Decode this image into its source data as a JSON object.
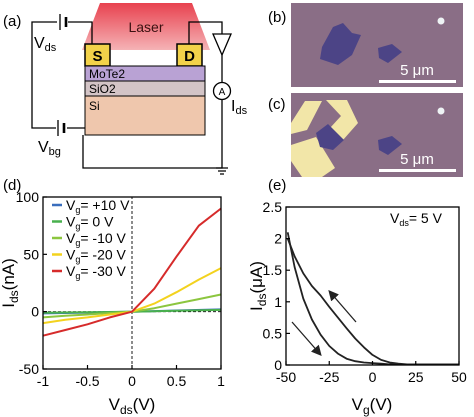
{
  "figure": {
    "panel_labels": {
      "a": "(a)",
      "b": "(b)",
      "c": "(c)",
      "d": "(d)",
      "e": "(e)"
    },
    "colors": {
      "laser": "#e8424f",
      "source_pad": "#f2d24a",
      "drain_pad": "#f2d24a",
      "mote2": "#b9a2d4",
      "sio2": "#d3c4c6",
      "si": "#efc7ad",
      "photo_bg": "#8a6e86",
      "flake": "#4c4486",
      "gold_contact": "#f2e6a8"
    },
    "schematic": {
      "laser_label": "Laser",
      "source_label": "S",
      "drain_label": "D",
      "layers": [
        "MoTe2",
        "SiO2",
        "Si"
      ],
      "vds_label": {
        "main": "V",
        "sub": "ds"
      },
      "vbg_label": {
        "main": "V",
        "sub": "bg"
      },
      "ammeter_symbol": "A",
      "ids_label": {
        "main": "I",
        "sub": "ds"
      }
    },
    "photo_b": {
      "scale_bar_text": "5 μm"
    },
    "photo_c": {
      "scale_bar_text": "5 μm"
    }
  },
  "chart_data": [
    {
      "panel": "(d)",
      "type": "line",
      "xlabel": {
        "main": "V",
        "sub": "ds",
        "unit": "(V)"
      },
      "ylabel": {
        "main": "I",
        "sub": "ds",
        "unit": "(nA)"
      },
      "xlim": [
        -1,
        1
      ],
      "ylim": [
        -50,
        100
      ],
      "xticks": [
        "-1",
        "-0.5",
        "0",
        "0.5",
        "1"
      ],
      "yticks": [
        "-50",
        "0",
        "50",
        "100"
      ],
      "legend_position": "top-left",
      "series": [
        {
          "name": "V_g= +10 V",
          "legend": {
            "main": "V",
            "sub": "g",
            "rest": "= +10 V"
          },
          "color": "#3a6ebd",
          "x": [
            -1,
            -0.5,
            0,
            0.5,
            1
          ],
          "y": [
            -1.5,
            -0.8,
            0,
            1,
            2
          ]
        },
        {
          "name": "V_g= 0 V",
          "legend": {
            "main": "V",
            "sub": "g",
            "rest": "= 0 V"
          },
          "color": "#49b04d",
          "x": [
            -1,
            -0.5,
            0,
            0.5,
            1
          ],
          "y": [
            -1,
            -0.5,
            0,
            0.8,
            1.5
          ]
        },
        {
          "name": "V_g= -10 V",
          "legend": {
            "main": "V",
            "sub": "g",
            "rest": "= -10 V"
          },
          "color": "#8cc63f",
          "x": [
            -1,
            -0.75,
            -0.5,
            -0.25,
            0,
            0.25,
            0.5,
            0.75,
            1
          ],
          "y": [
            -5,
            -3.5,
            -2.5,
            -1.2,
            0,
            3,
            7,
            11,
            15
          ]
        },
        {
          "name": "V_g= -20 V",
          "legend": {
            "main": "V",
            "sub": "g",
            "rest": "= -20 V"
          },
          "color": "#f3d21e",
          "x": [
            -1,
            -0.75,
            -0.5,
            -0.25,
            0,
            0.25,
            0.5,
            0.75,
            1
          ],
          "y": [
            -10,
            -7,
            -5,
            -2.5,
            0,
            7,
            17,
            28,
            38
          ]
        },
        {
          "name": "V_g= -30 V",
          "legend": {
            "main": "V",
            "sub": "g",
            "rest": "= -30 V"
          },
          "color": "#d62b2b",
          "x": [
            -1,
            -0.75,
            -0.5,
            -0.25,
            0,
            0.25,
            0.5,
            0.75,
            1
          ],
          "y": [
            -21,
            -16,
            -11,
            -5,
            0,
            20,
            48,
            75,
            90
          ]
        }
      ]
    },
    {
      "panel": "(e)",
      "type": "line",
      "annotation": {
        "main": "V",
        "sub": "ds",
        "rest": "= 5 V"
      },
      "xlabel": {
        "main": "V",
        "sub": "g",
        "unit": "(V)"
      },
      "ylabel": {
        "main": "I",
        "sub": "ds",
        "unit": "(μA)"
      },
      "xlim": [
        -50,
        50
      ],
      "ylim": [
        0,
        2.5
      ],
      "xticks": [
        "-50",
        "-25",
        "0",
        "25",
        "50"
      ],
      "yticks": [
        "0",
        "0.5",
        "1",
        "1.5",
        "2",
        "2.5"
      ],
      "series": [
        {
          "name": "sweep up",
          "color": "#222222",
          "x": [
            -49,
            -45,
            -40,
            -35,
            -30,
            -25,
            -20,
            -15,
            -10,
            -5,
            0,
            5,
            10,
            15,
            20,
            25,
            30,
            40,
            50
          ],
          "y": [
            2.0,
            1.72,
            1.45,
            1.25,
            1.1,
            0.92,
            0.75,
            0.58,
            0.42,
            0.28,
            0.16,
            0.08,
            0.04,
            0.02,
            0.01,
            0.01,
            0.01,
            0.01,
            0.01
          ]
        },
        {
          "name": "sweep down",
          "color": "#222222",
          "x": [
            -49,
            -45,
            -40,
            -35,
            -30,
            -25,
            -20,
            -15,
            -10,
            -5,
            0,
            5,
            10,
            15,
            20,
            25,
            30,
            40,
            50
          ],
          "y": [
            2.1,
            1.55,
            1.05,
            0.72,
            0.48,
            0.3,
            0.18,
            0.1,
            0.06,
            0.04,
            0.03,
            0.02,
            0.01,
            0.01,
            0.01,
            0.01,
            0.01,
            0.01,
            0.01
          ]
        }
      ]
    }
  ]
}
